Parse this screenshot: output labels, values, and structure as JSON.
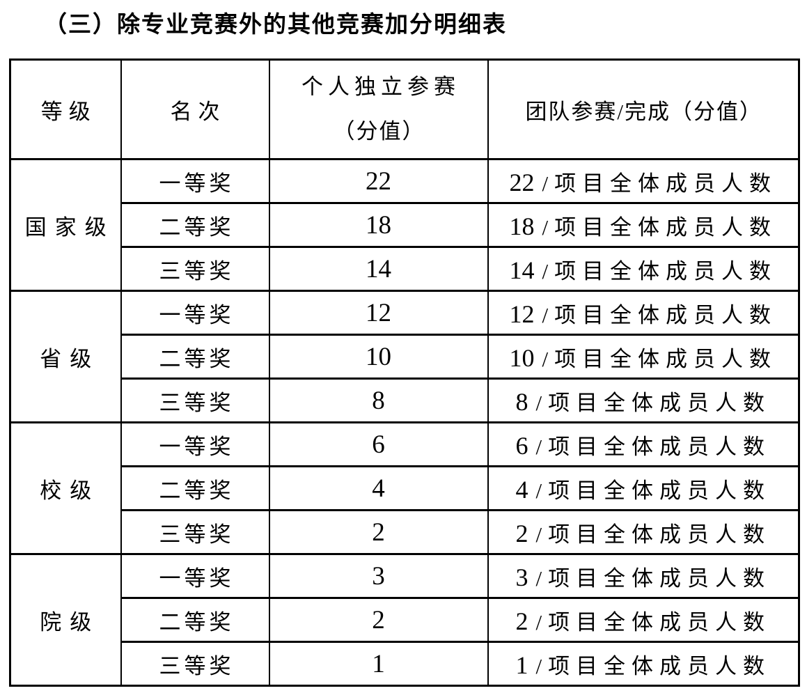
{
  "page": {
    "title": "（三）除专业竞赛外的其他竞赛加分明细表"
  },
  "colors": {
    "text": "#000000",
    "border": "#000000",
    "background": "#ffffff"
  },
  "table": {
    "headers": {
      "level": "等级",
      "rank": "名次",
      "individual_line1": "个人独立参赛",
      "individual_line2": "（分值）",
      "team": "团队参赛/完成（分值）"
    },
    "team_sep": "/",
    "team_suffix": "项目全体成员人数",
    "groups": [
      {
        "level": "国家级",
        "rows": [
          {
            "rank": "一等奖",
            "individual": "22",
            "team_score": "22"
          },
          {
            "rank": "二等奖",
            "individual": "18",
            "team_score": "18"
          },
          {
            "rank": "三等奖",
            "individual": "14",
            "team_score": "14"
          }
        ]
      },
      {
        "level": "省级",
        "rows": [
          {
            "rank": "一等奖",
            "individual": "12",
            "team_score": "12"
          },
          {
            "rank": "二等奖",
            "individual": "10",
            "team_score": "10"
          },
          {
            "rank": "三等奖",
            "individual": "8",
            "team_score": "8"
          }
        ]
      },
      {
        "level": "校级",
        "rows": [
          {
            "rank": "一等奖",
            "individual": "6",
            "team_score": "6"
          },
          {
            "rank": "二等奖",
            "individual": "4",
            "team_score": "4"
          },
          {
            "rank": "三等奖",
            "individual": "2",
            "team_score": "2"
          }
        ]
      },
      {
        "level": "院级",
        "rows": [
          {
            "rank": "一等奖",
            "individual": "3",
            "team_score": "3"
          },
          {
            "rank": "二等奖",
            "individual": "2",
            "team_score": "2"
          },
          {
            "rank": "三等奖",
            "individual": "1",
            "team_score": "1"
          }
        ]
      }
    ]
  }
}
